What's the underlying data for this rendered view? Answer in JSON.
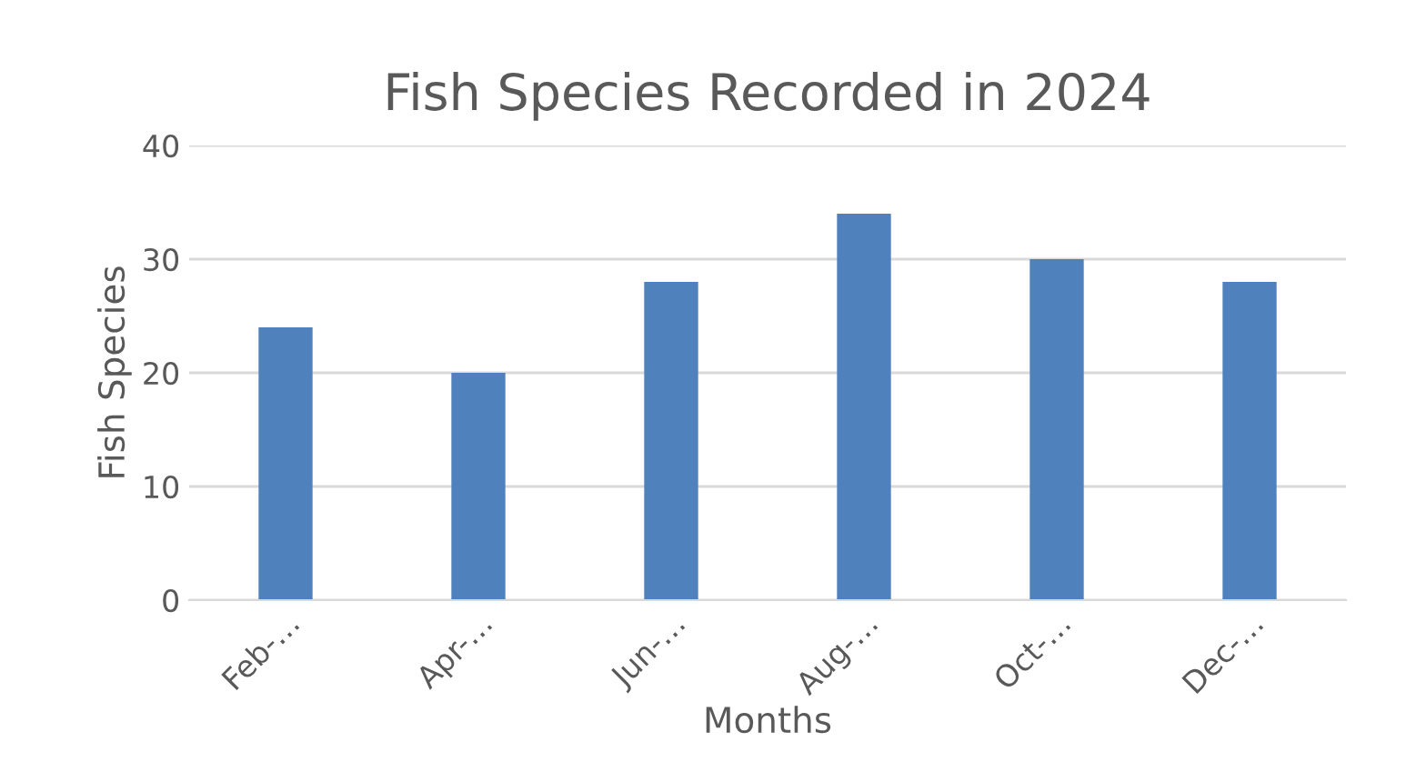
{
  "chart_data": {
    "type": "bar",
    "title": "Fish Species Recorded in 2024",
    "xlabel": "Months",
    "ylabel": "Fish Species",
    "categories": [
      "Feb-…",
      "Apr-…",
      "Jun-…",
      "Aug-…",
      "Oct-…",
      "Dec-…"
    ],
    "values": [
      24,
      20,
      28,
      34,
      30,
      28
    ],
    "color": "#4f81bd",
    "ylim": [
      0,
      40
    ],
    "yticks": [
      0,
      10,
      20,
      30,
      40
    ],
    "grid": "y",
    "legend": false
  }
}
